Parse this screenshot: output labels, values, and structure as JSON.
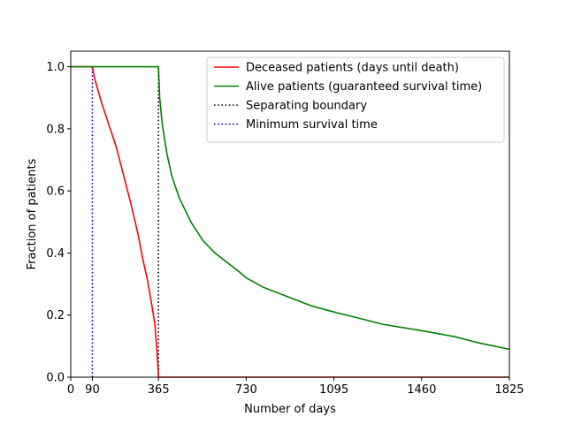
{
  "chart_data": {
    "type": "line",
    "title": "",
    "xlabel": "Number of days",
    "ylabel": "Fraction of patients",
    "xlim": [
      0,
      1825
    ],
    "ylim": [
      0,
      1.05
    ],
    "xticks": [
      0,
      90,
      365,
      730,
      1095,
      1460,
      1825
    ],
    "xtick_labels": [
      "0",
      "90",
      "365",
      "730",
      "1095",
      "1460",
      "1825"
    ],
    "yticks": [
      0,
      0.2,
      0.4,
      0.6,
      0.8,
      1.0
    ],
    "ytick_labels": [
      "0.0",
      "0.2",
      "0.4",
      "0.6",
      "0.8",
      "1.0"
    ],
    "grid": false,
    "legend_position": "top-right",
    "series": [
      {
        "name": "Deceased patients (days until death)",
        "color": "#ff0000",
        "style": "solid",
        "x": [
          0,
          90,
          100,
          130,
          160,
          190,
          220,
          250,
          280,
          300,
          320,
          340,
          350,
          355,
          360,
          362,
          364,
          365,
          1825
        ],
        "y": [
          1.0,
          1.0,
          0.96,
          0.88,
          0.81,
          0.74,
          0.65,
          0.56,
          0.46,
          0.38,
          0.31,
          0.22,
          0.17,
          0.12,
          0.07,
          0.04,
          0.02,
          0.0,
          0.0
        ]
      },
      {
        "name": "Alive patients (guaranteed survival time)",
        "color": "#008000",
        "style": "solid",
        "x": [
          0,
          365,
          370,
          380,
          400,
          420,
          450,
          500,
          550,
          600,
          650,
          700,
          730,
          800,
          900,
          1000,
          1095,
          1200,
          1300,
          1460,
          1600,
          1700,
          1825
        ],
        "y": [
          1.0,
          1.0,
          0.9,
          0.82,
          0.72,
          0.65,
          0.58,
          0.5,
          0.44,
          0.4,
          0.37,
          0.34,
          0.32,
          0.29,
          0.26,
          0.23,
          0.21,
          0.19,
          0.17,
          0.15,
          0.13,
          0.11,
          0.09
        ]
      },
      {
        "name": "Separating boundary",
        "color": "#000000",
        "style": "dotted",
        "x": [
          365,
          365
        ],
        "y": [
          0,
          1.0
        ]
      },
      {
        "name": "Minimum survival time",
        "color": "#0000cd",
        "style": "dotted",
        "x": [
          90,
          90
        ],
        "y": [
          0,
          1.0
        ]
      }
    ]
  }
}
